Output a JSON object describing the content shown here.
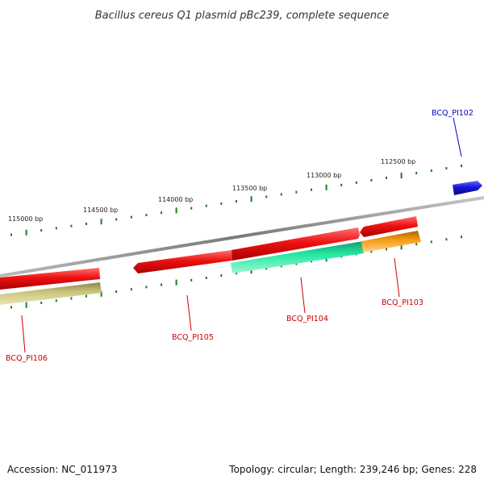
{
  "title": "Bacillus cereus Q1 plasmid pBc239, complete sequence",
  "footer": {
    "accession": "Accession: NC_011973",
    "summary": "Topology: circular; Length: 239,246 bp; Genes: 228"
  },
  "ruler": {
    "tick_color": "#1e7a1e",
    "labels": [
      "115000 bp",
      "114500 bp",
      "114000 bp",
      "113500 bp",
      "113000 bp",
      "112500 bp"
    ]
  },
  "colors": {
    "backbone": "#8a8a8a",
    "cds_forward": "#ee1111",
    "cds_reverse_teal": "#22e8a0",
    "cds_reverse_orange": "#f49a12",
    "cds_reverse_olive": "#c9c27a",
    "cds_blue": "#1515dd",
    "label_red": "#cc0000",
    "label_blue": "#0000cc"
  },
  "genes": {
    "g102": "BCQ_PI102",
    "g103": "BCQ_PI103",
    "g104": "BCQ_PI104",
    "g105": "BCQ_PI105",
    "g106": "BCQ_PI106"
  }
}
